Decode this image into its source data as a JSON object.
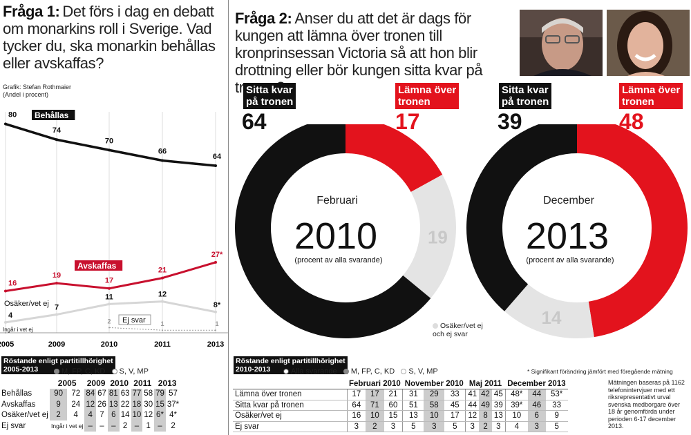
{
  "q1": {
    "label": "Fråga 1:",
    "text": "Det förs i dag en debatt om monarkins roll i Sverige. Vad tycker du, ska monarkin behållas eller avskaffas?"
  },
  "credit": {
    "line1": "Grafik: Stefan Rothmaier",
    "line2": "(Andel i procent)"
  },
  "q2": {
    "label": "Fråga 2:",
    "text": "Anser du att det är dags för kungen att lämna över tronen till kronprinsessan Victoria så att hon blir drottning eller bör kungen sitta kvar på tronen?"
  },
  "colors": {
    "black": "#111111",
    "red": "#e3131d",
    "lightgray": "#e4e4e4",
    "gray": "#c8c8c8"
  },
  "chart_data": [
    {
      "type": "line",
      "years": [
        "2005",
        "2009",
        "2010",
        "2011",
        "2013"
      ],
      "series": [
        {
          "name": "Behållas",
          "values": [
            80,
            74,
            70,
            66,
            64
          ],
          "labels": [
            "80",
            "74",
            "70",
            "66",
            "64"
          ]
        },
        {
          "name": "Avskaffas",
          "values": [
            16,
            19,
            17,
            21,
            27
          ],
          "labels": [
            "16",
            "19",
            "17",
            "21",
            "27*"
          ]
        },
        {
          "name": "Osäker/vet ej",
          "values": [
            4,
            7,
            11,
            12,
            8
          ],
          "labels": [
            "4",
            "7",
            "11",
            "12",
            "8*"
          ]
        },
        {
          "name": "Ej svar",
          "values": [
            null,
            null,
            2,
            1,
            1
          ],
          "labels": [
            "",
            "",
            "2",
            "1",
            "1"
          ]
        },
        {
          "name": "Ingår i vet ej",
          "values": [
            0,
            null,
            null,
            null,
            null
          ],
          "labels": [
            "",
            "",
            "",
            "",
            ""
          ]
        }
      ],
      "ylim": [
        0,
        82
      ]
    },
    {
      "type": "pie",
      "period": "Februari",
      "year": "2010",
      "note": "(procent av alla svarande)",
      "slices": [
        {
          "name": "Lämna över tronen",
          "value": 17
        },
        {
          "name": "Osäker/vet ej och ej svar",
          "value": 19
        },
        {
          "name": "Sitta kvar på tronen",
          "value": 64
        }
      ]
    },
    {
      "type": "pie",
      "period": "December",
      "year": "2013",
      "note": "(procent av alla svarande)",
      "slices": [
        {
          "name": "Lämna över tronen",
          "value": 48
        },
        {
          "name": "Osäker/vet ej och ej svar",
          "value": 14
        },
        {
          "name": "Sitta kvar på tronen",
          "value": 39
        }
      ]
    }
  ],
  "donut_labels": {
    "sitta1": "Sitta kvar\npå tronen",
    "lamna1": "Lämna över\ntronen",
    "sitta1_val": "64",
    "lamna1_val": "17",
    "sitta2": "Sitta kvar\npå tronen",
    "lamna2": "Lämna över\ntronen",
    "sitta2_val": "39",
    "lamna2_val": "48",
    "unsure": "Osäker/vet ej\noch ej svar"
  },
  "left_table": {
    "header": "Röstande enligt partitillhörighet\n2005-2013",
    "legend": [
      "M, FP, C, KD",
      "S, V, MP"
    ],
    "years": [
      "2005",
      "2009",
      "2010",
      "2011",
      "2013"
    ],
    "rows": [
      {
        "label": "Behållas",
        "cells": [
          "90",
          "72",
          "84",
          "67",
          "81",
          "63",
          "77",
          "58",
          "79",
          "57"
        ]
      },
      {
        "label": "Avskaffas",
        "cells": [
          "9",
          "24",
          "12",
          "26",
          "13",
          "22",
          "18",
          "30",
          "15",
          "37*"
        ]
      },
      {
        "label": "Osäker/vet ej",
        "cells": [
          "2",
          "4",
          "4",
          "7",
          "6",
          "14",
          "10",
          "12",
          "6*",
          "4*"
        ]
      },
      {
        "label": "Ej svar",
        "cells": [
          "Ingår i vet ej",
          "",
          "–",
          "–",
          "–",
          "2",
          "–",
          "1",
          "–",
          "2"
        ]
      }
    ]
  },
  "right_table": {
    "header": "Röstande enligt partitillhörighet\n2010-2013",
    "legend": [
      "Alla svarande",
      "M, FP, C, KD",
      "S, V, MP"
    ],
    "footnote": "* Signifikant förändring jämfört med föregående mätning",
    "periods": [
      "Februari 2010",
      "November 2010",
      "Maj 2011",
      "December 2013"
    ],
    "rows": [
      {
        "label": "Lämna över tronen",
        "cells": [
          "17",
          "17",
          "21",
          "31",
          "29",
          "33",
          "41",
          "42",
          "45",
          "48*",
          "44",
          "53*"
        ]
      },
      {
        "label": "Sitta kvar på tronen",
        "cells": [
          "64",
          "71",
          "60",
          "51",
          "58",
          "45",
          "44",
          "49",
          "39",
          "39*",
          "46",
          "33"
        ]
      },
      {
        "label": "Osäker/vet ej",
        "cells": [
          "16",
          "10",
          "15",
          "13",
          "10",
          "17",
          "12",
          "8",
          "13",
          "10",
          "6",
          "9"
        ]
      },
      {
        "label": "Ej svar",
        "cells": [
          "3",
          "2",
          "3",
          "5",
          "3",
          "5",
          "3",
          "2",
          "3",
          "4",
          "3",
          "5"
        ]
      }
    ]
  },
  "method": "Mätningen baseras på 1162 telefonintervjuer med ett riksrepresentativt urval svenska medborgare över 18 år genomförda under perioden 6-17 december 2013."
}
